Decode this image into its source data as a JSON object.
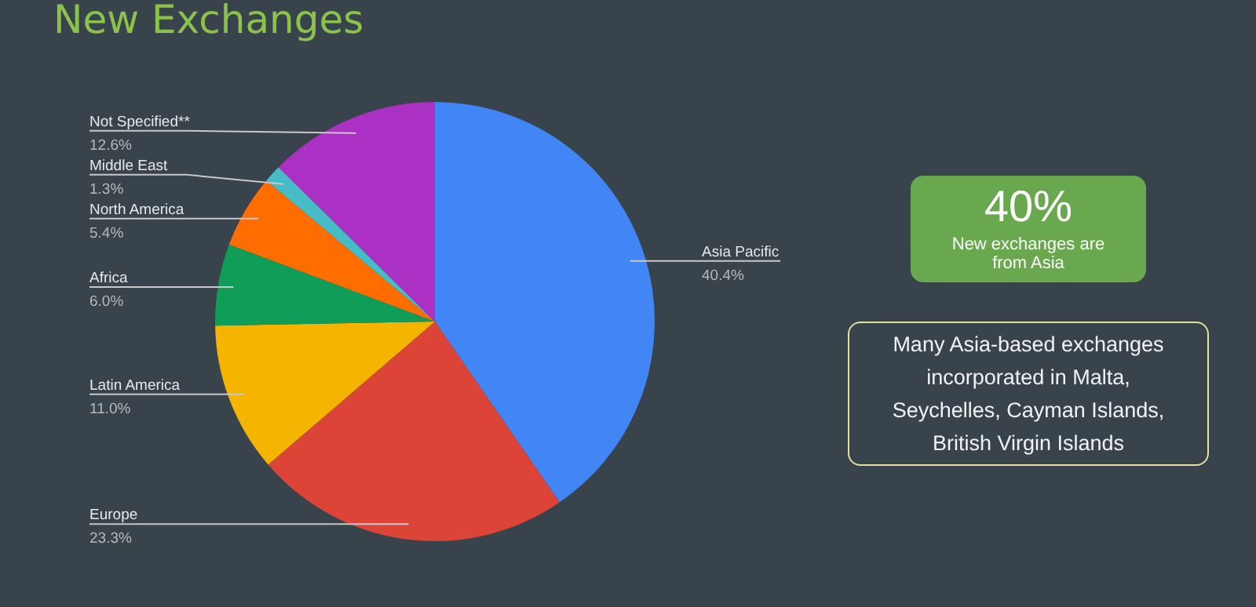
{
  "chart_data": {
    "type": "pie",
    "title": "New Exchanges",
    "categories": [
      "Asia Pacific",
      "Europe",
      "Latin America",
      "Africa",
      "North America",
      "Middle East",
      "Not Specified**"
    ],
    "values": [
      40.4,
      23.3,
      11.0,
      6.0,
      5.4,
      1.3,
      12.6
    ],
    "value_labels": [
      "40.4%",
      "23.3%",
      "11.0%",
      "6.0%",
      "5.4%",
      "1.3%",
      "12.6%"
    ],
    "colors": [
      "#4285f4",
      "#db4437",
      "#f4b400",
      "#0f9d58",
      "#ff6d01",
      "#46bdc6",
      "#ab30c4"
    ],
    "legend": false,
    "annotations": [
      "40%",
      "New exchanges are from Asia",
      "Many Asia-based exchanges incorporated in Malta, Seychelles, Cayman Islands, British Virgin Islands"
    ]
  }
}
